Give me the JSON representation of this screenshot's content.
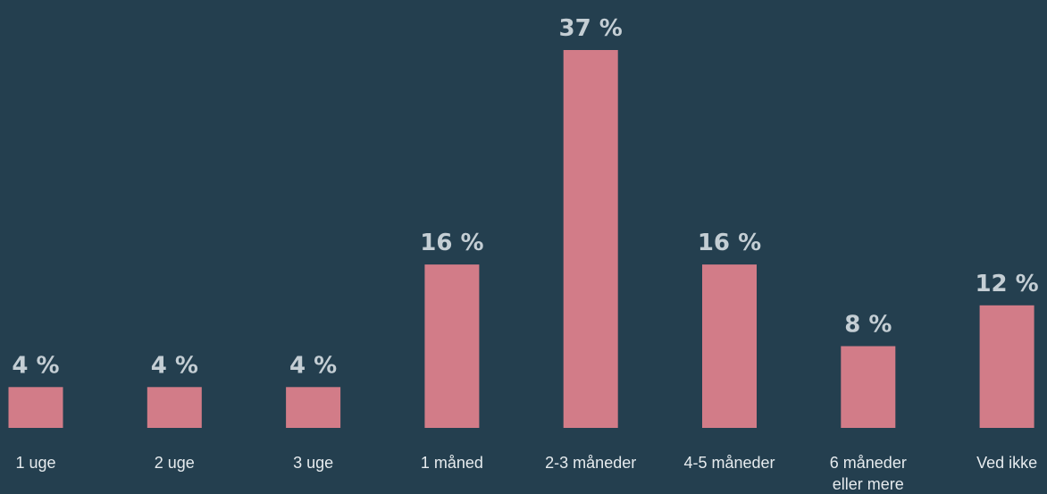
{
  "colors": {
    "background": "#243f4f",
    "bar": "#d27c88",
    "value_label": "#c4ced4",
    "category_label": "#e6ebee"
  },
  "chart_data": {
    "type": "bar",
    "title": "",
    "xlabel": "",
    "ylabel": "",
    "ylim": [
      0,
      37
    ],
    "grid": false,
    "legend": "none",
    "categories": [
      [
        "1 uge"
      ],
      [
        "2 uge"
      ],
      [
        "3 uge"
      ],
      [
        "1 måned"
      ],
      [
        "2-3 måneder"
      ],
      [
        "4-5 måneder"
      ],
      [
        "6 måneder",
        "eller mere"
      ],
      [
        "Ved ikke"
      ]
    ],
    "values": [
      4,
      4,
      4,
      16,
      37,
      16,
      8,
      12
    ],
    "value_labels": [
      "4 %",
      "4 %",
      "4 %",
      "16 %",
      "37 %",
      "16 %",
      "8 %",
      "12 %"
    ]
  }
}
